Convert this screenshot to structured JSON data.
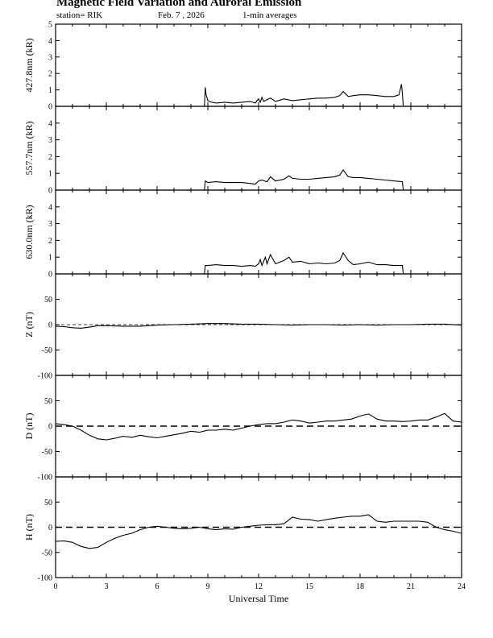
{
  "header": {
    "title": "Magnetic Field Variation and Auroral Emission",
    "station": "station= RIK",
    "date": "Feb. 7  , 2026",
    "averaging": "1-min averages"
  },
  "chart_data": [
    {
      "type": "line",
      "ylabel": "427.8nm (kR)",
      "ylim": [
        0,
        5
      ],
      "yticks": [
        0,
        1,
        2,
        3,
        4,
        5
      ],
      "zero_dashed": false,
      "series": [
        {
          "x": [
            8.8,
            8.85,
            8.9,
            9.0,
            9.2,
            9.5,
            10.0,
            10.5,
            11.0,
            11.5,
            11.8,
            12.0,
            12.1,
            12.2,
            12.3,
            12.5,
            12.7,
            13.0,
            13.5,
            14.0,
            14.5,
            15.0,
            15.5,
            16.0,
            16.5,
            16.8,
            17.0,
            17.3,
            17.6,
            18.0,
            18.5,
            19.0,
            19.5,
            20.0,
            20.3,
            20.45,
            20.5,
            20.55
          ],
          "y": [
            0.0,
            1.15,
            0.7,
            0.35,
            0.25,
            0.2,
            0.25,
            0.2,
            0.25,
            0.3,
            0.2,
            0.45,
            0.25,
            0.55,
            0.3,
            0.4,
            0.5,
            0.3,
            0.45,
            0.35,
            0.4,
            0.45,
            0.5,
            0.5,
            0.55,
            0.65,
            0.9,
            0.6,
            0.65,
            0.7,
            0.7,
            0.65,
            0.6,
            0.6,
            0.7,
            1.35,
            0.8,
            0.0
          ]
        }
      ]
    },
    {
      "type": "line",
      "ylabel": "557.7nm (kR)",
      "ylim": [
        0,
        5
      ],
      "yticks": [
        0,
        1,
        2,
        3,
        4
      ],
      "zero_dashed": false,
      "series": [
        {
          "x": [
            8.0,
            8.8,
            8.85,
            9.0,
            9.5,
            10.0,
            10.5,
            11.0,
            11.5,
            11.8,
            12.0,
            12.2,
            12.5,
            12.7,
            13.0,
            13.5,
            13.8,
            14.0,
            14.5,
            15.0,
            15.5,
            16.0,
            16.5,
            16.8,
            17.0,
            17.3,
            17.6,
            18.0,
            18.5,
            19.0,
            19.5,
            20.0,
            20.5,
            20.55,
            23.0
          ],
          "y": [
            0.0,
            0.0,
            0.55,
            0.45,
            0.5,
            0.45,
            0.45,
            0.45,
            0.4,
            0.35,
            0.55,
            0.6,
            0.5,
            0.8,
            0.55,
            0.65,
            0.85,
            0.7,
            0.65,
            0.65,
            0.7,
            0.75,
            0.8,
            0.9,
            1.2,
            0.8,
            0.75,
            0.75,
            0.7,
            0.65,
            0.6,
            0.55,
            0.5,
            0.0,
            0.0
          ]
        }
      ]
    },
    {
      "type": "line",
      "ylabel": "630.0nm (kR)",
      "ylim": [
        0,
        5
      ],
      "yticks": [
        0,
        1,
        2,
        3,
        4
      ],
      "zero_dashed": false,
      "series": [
        {
          "x": [
            8.0,
            8.8,
            8.85,
            9.0,
            9.5,
            10.0,
            10.5,
            11.0,
            11.5,
            11.8,
            12.0,
            12.1,
            12.2,
            12.4,
            12.5,
            12.7,
            13.0,
            13.5,
            13.8,
            14.0,
            14.5,
            15.0,
            15.5,
            16.0,
            16.5,
            16.8,
            17.0,
            17.3,
            17.6,
            18.0,
            18.5,
            19.0,
            19.5,
            20.0,
            20.5,
            20.55,
            23.0
          ],
          "y": [
            0.0,
            0.0,
            0.5,
            0.5,
            0.55,
            0.5,
            0.5,
            0.45,
            0.5,
            0.45,
            0.6,
            0.85,
            0.5,
            1.0,
            0.6,
            1.15,
            0.6,
            0.8,
            1.0,
            0.7,
            0.75,
            0.6,
            0.65,
            0.6,
            0.65,
            0.8,
            1.25,
            0.8,
            0.55,
            0.6,
            0.7,
            0.55,
            0.55,
            0.5,
            0.5,
            0.0,
            0.0
          ]
        }
      ]
    },
    {
      "type": "line",
      "ylabel": "Z (nT)",
      "ylim": [
        -100,
        100
      ],
      "yticks": [
        -100,
        -50,
        0,
        50
      ],
      "zero_dashed": true,
      "series": [
        {
          "x": [
            0,
            0.5,
            1,
            1.5,
            2,
            2.5,
            3,
            4,
            5,
            6,
            7,
            8,
            9,
            10,
            11,
            12,
            13,
            14,
            15,
            16,
            17,
            18,
            19,
            20,
            21,
            22,
            23,
            24
          ],
          "y": [
            -3,
            -4,
            -6,
            -7,
            -5,
            -2,
            -2,
            -3,
            -3,
            -1,
            0,
            1,
            2,
            2,
            1,
            1,
            0,
            -1,
            0,
            0,
            -1,
            0,
            -1,
            0,
            0,
            1,
            1,
            -1
          ]
        }
      ]
    },
    {
      "type": "line",
      "ylabel": "D (nT)",
      "ylim": [
        -100,
        100
      ],
      "yticks": [
        -100,
        -50,
        0,
        50
      ],
      "zero_dashed": true,
      "series": [
        {
          "x": [
            0,
            0.5,
            1,
            1.5,
            2,
            2.5,
            3,
            3.5,
            4,
            4.5,
            5,
            5.5,
            6,
            6.5,
            7,
            7.5,
            8,
            8.5,
            9,
            9.5,
            10,
            10.5,
            11,
            11.5,
            12,
            12.5,
            13,
            13.5,
            14,
            14.5,
            15,
            15.5,
            16,
            16.5,
            17,
            17.5,
            18,
            18.5,
            19,
            19.5,
            20,
            20.5,
            21,
            21.5,
            22,
            22.5,
            23,
            23.5,
            24
          ],
          "y": [
            5,
            3,
            0,
            -8,
            -18,
            -25,
            -27,
            -24,
            -20,
            -22,
            -18,
            -21,
            -23,
            -20,
            -17,
            -14,
            -10,
            -12,
            -8,
            -8,
            -6,
            -8,
            -4,
            0,
            3,
            5,
            5,
            8,
            12,
            10,
            6,
            8,
            10,
            10,
            12,
            14,
            20,
            24,
            14,
            10,
            10,
            9,
            10,
            12,
            12,
            18,
            25,
            10,
            8
          ]
        }
      ]
    },
    {
      "type": "line",
      "ylabel": "H (nT)",
      "ylim": [
        -100,
        100
      ],
      "yticks": [
        -100,
        -50,
        0,
        50
      ],
      "zero_dashed": true,
      "series": [
        {
          "x": [
            0,
            0.5,
            1,
            1.5,
            2,
            2.5,
            3,
            3.5,
            4,
            4.5,
            5,
            5.5,
            6,
            6.5,
            7,
            7.5,
            8,
            8.5,
            9,
            9.5,
            10,
            10.5,
            11,
            11.5,
            12,
            12.5,
            13,
            13.5,
            14,
            14.5,
            15,
            15.5,
            16,
            16.5,
            17,
            17.5,
            18,
            18.5,
            19,
            19.5,
            20,
            20.5,
            21,
            21.5,
            22,
            22.5,
            23,
            23.5,
            24
          ],
          "y": [
            -28,
            -27,
            -30,
            -38,
            -42,
            -40,
            -30,
            -22,
            -16,
            -12,
            -5,
            0,
            2,
            0,
            -2,
            -3,
            -2,
            0,
            -3,
            -5,
            -3,
            -4,
            0,
            2,
            4,
            5,
            5,
            7,
            20,
            16,
            15,
            12,
            15,
            18,
            20,
            22,
            22,
            25,
            12,
            10,
            12,
            12,
            12,
            12,
            10,
            0,
            -5,
            -8,
            -12
          ]
        }
      ]
    }
  ],
  "xaxis": {
    "label": "Universal Time",
    "xlim": [
      0,
      24
    ],
    "ticks": [
      0,
      3,
      6,
      9,
      12,
      15,
      18,
      21,
      24
    ]
  }
}
